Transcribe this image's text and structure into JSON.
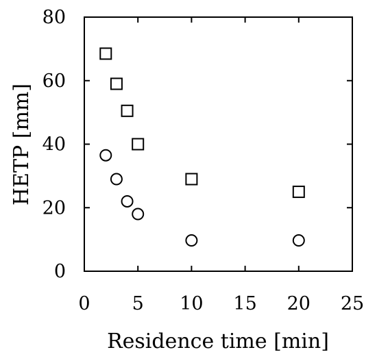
{
  "chart_data": {
    "type": "scatter",
    "title": "",
    "xlabel": "Residence time [min]",
    "ylabel": "HETP [mm]",
    "xlim": [
      0,
      25
    ],
    "ylim": [
      0,
      80
    ],
    "xticks": [
      0,
      5,
      10,
      15,
      20,
      25
    ],
    "yticks": [
      0,
      20,
      40,
      60,
      80
    ],
    "xtick_labels": [
      "0",
      "5",
      "10",
      "15",
      "20",
      "25"
    ],
    "ytick_labels": [
      "0",
      "20",
      "40",
      "60",
      "80"
    ],
    "grid": false,
    "legend": null,
    "series": [
      {
        "marker": "square",
        "color": "#000000",
        "x": [
          2,
          3,
          4,
          5,
          10,
          20
        ],
        "y": [
          68.5,
          59,
          50.5,
          40,
          29,
          25
        ]
      },
      {
        "marker": "circle",
        "color": "#000000",
        "x": [
          2,
          3,
          4,
          5,
          10,
          20
        ],
        "y": [
          36.5,
          29,
          22,
          18,
          9.7,
          9.7
        ]
      }
    ]
  }
}
